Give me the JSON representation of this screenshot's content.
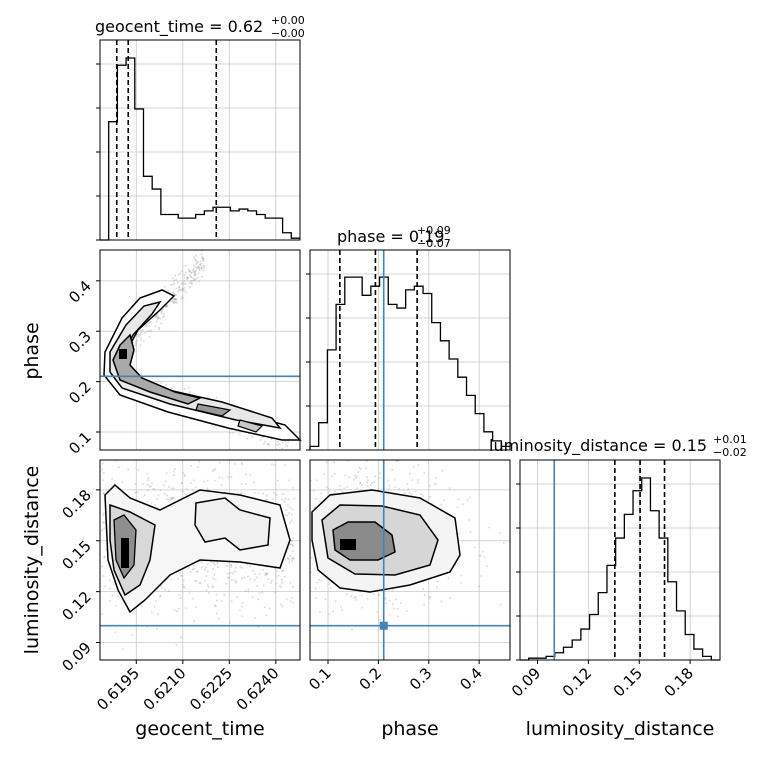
{
  "chart_data": {
    "type": "corner",
    "parameters": [
      "geocent_time",
      "phase",
      "luminosity_distance"
    ],
    "titles": [
      {
        "param": "geocent_time",
        "text": "geocent_time = 0.62",
        "plus": "+0.00",
        "minus": "−0.00"
      },
      {
        "param": "phase",
        "text": "phase = 0.19",
        "plus": "+0.09",
        "minus": "−0.07"
      },
      {
        "param": "luminosity_distance",
        "text": "luminosity_distance = 0.15",
        "plus": "+0.01",
        "minus": "−0.02"
      }
    ],
    "ranges": {
      "geocent_time": [
        0.61833,
        0.62478
      ],
      "phase": [
        0.0643,
        0.4612
      ],
      "luminosity_distance": [
        0.0797,
        0.1976
      ]
    },
    "ticks": {
      "geocent_time": {
        "values": [
          0.6195,
          0.621,
          0.6225,
          0.624
        ],
        "labels": [
          "0.6195",
          "0.6210",
          "0.6225",
          "0.6240"
        ]
      },
      "phase": {
        "values": [
          0.1,
          0.2,
          0.3,
          0.4
        ],
        "labels": [
          "0.1",
          "0.2",
          "0.3",
          "0.4"
        ]
      },
      "luminosity_distance": {
        "values": [
          0.09,
          0.12,
          0.15,
          0.18
        ],
        "labels": [
          "0.09",
          "0.12",
          "0.15",
          "0.18"
        ]
      }
    },
    "truths": {
      "geocent_time": null,
      "phase": 0.2106,
      "luminosity_distance": 0.0999
    },
    "quantiles": {
      "geocent_time": [
        0.61887,
        0.61924,
        0.62208
      ],
      "phase": [
        0.1235,
        0.1941,
        0.2769
      ],
      "luminosity_distance": [
        0.1356,
        0.1505,
        0.1649
      ]
    },
    "histograms": {
      "geocent_time": [
        0.0,
        0.65,
        0.96,
        1.0,
        0.72,
        0.35,
        0.28,
        0.14,
        0.14,
        0.12,
        0.12,
        0.14,
        0.16,
        0.18,
        0.18,
        0.16,
        0.17,
        0.16,
        0.14,
        0.12,
        0.12,
        0.04,
        0.01
      ],
      "phase": [
        0.02,
        0.15,
        0.55,
        0.8,
        0.95,
        0.95,
        0.85,
        0.9,
        0.95,
        0.8,
        0.78,
        0.88,
        0.9,
        0.86,
        0.7,
        0.6,
        0.5,
        0.4,
        0.3,
        0.2,
        0.1,
        0.05,
        0.02
      ],
      "luminosity_distance": [
        0.0,
        0.01,
        0.01,
        0.02,
        0.04,
        0.07,
        0.11,
        0.17,
        0.25,
        0.37,
        0.52,
        0.67,
        0.8,
        0.93,
        1.0,
        0.82,
        0.67,
        0.43,
        0.27,
        0.14,
        0.06,
        0.02,
        0.0
      ]
    },
    "density_modes": [
      {
        "x": "geocent_time",
        "y": "phase",
        "note": "V-shaped density: upper arm rising along phase ≈ 0.44·1 toward 0.4, lower arm decreasing to 0.09; peak near (0.6190, 0.25)"
      },
      {
        "x": "geocent_time",
        "y": "luminosity_distance",
        "note": "peak near (0.6191, 0.145), broad band 0.125–0.18"
      },
      {
        "x": "phase",
        "y": "luminosity_distance",
        "note": "peak near (0.13, 0.155), broad band phase 0.06–0.36"
      }
    ],
    "grid": true
  }
}
